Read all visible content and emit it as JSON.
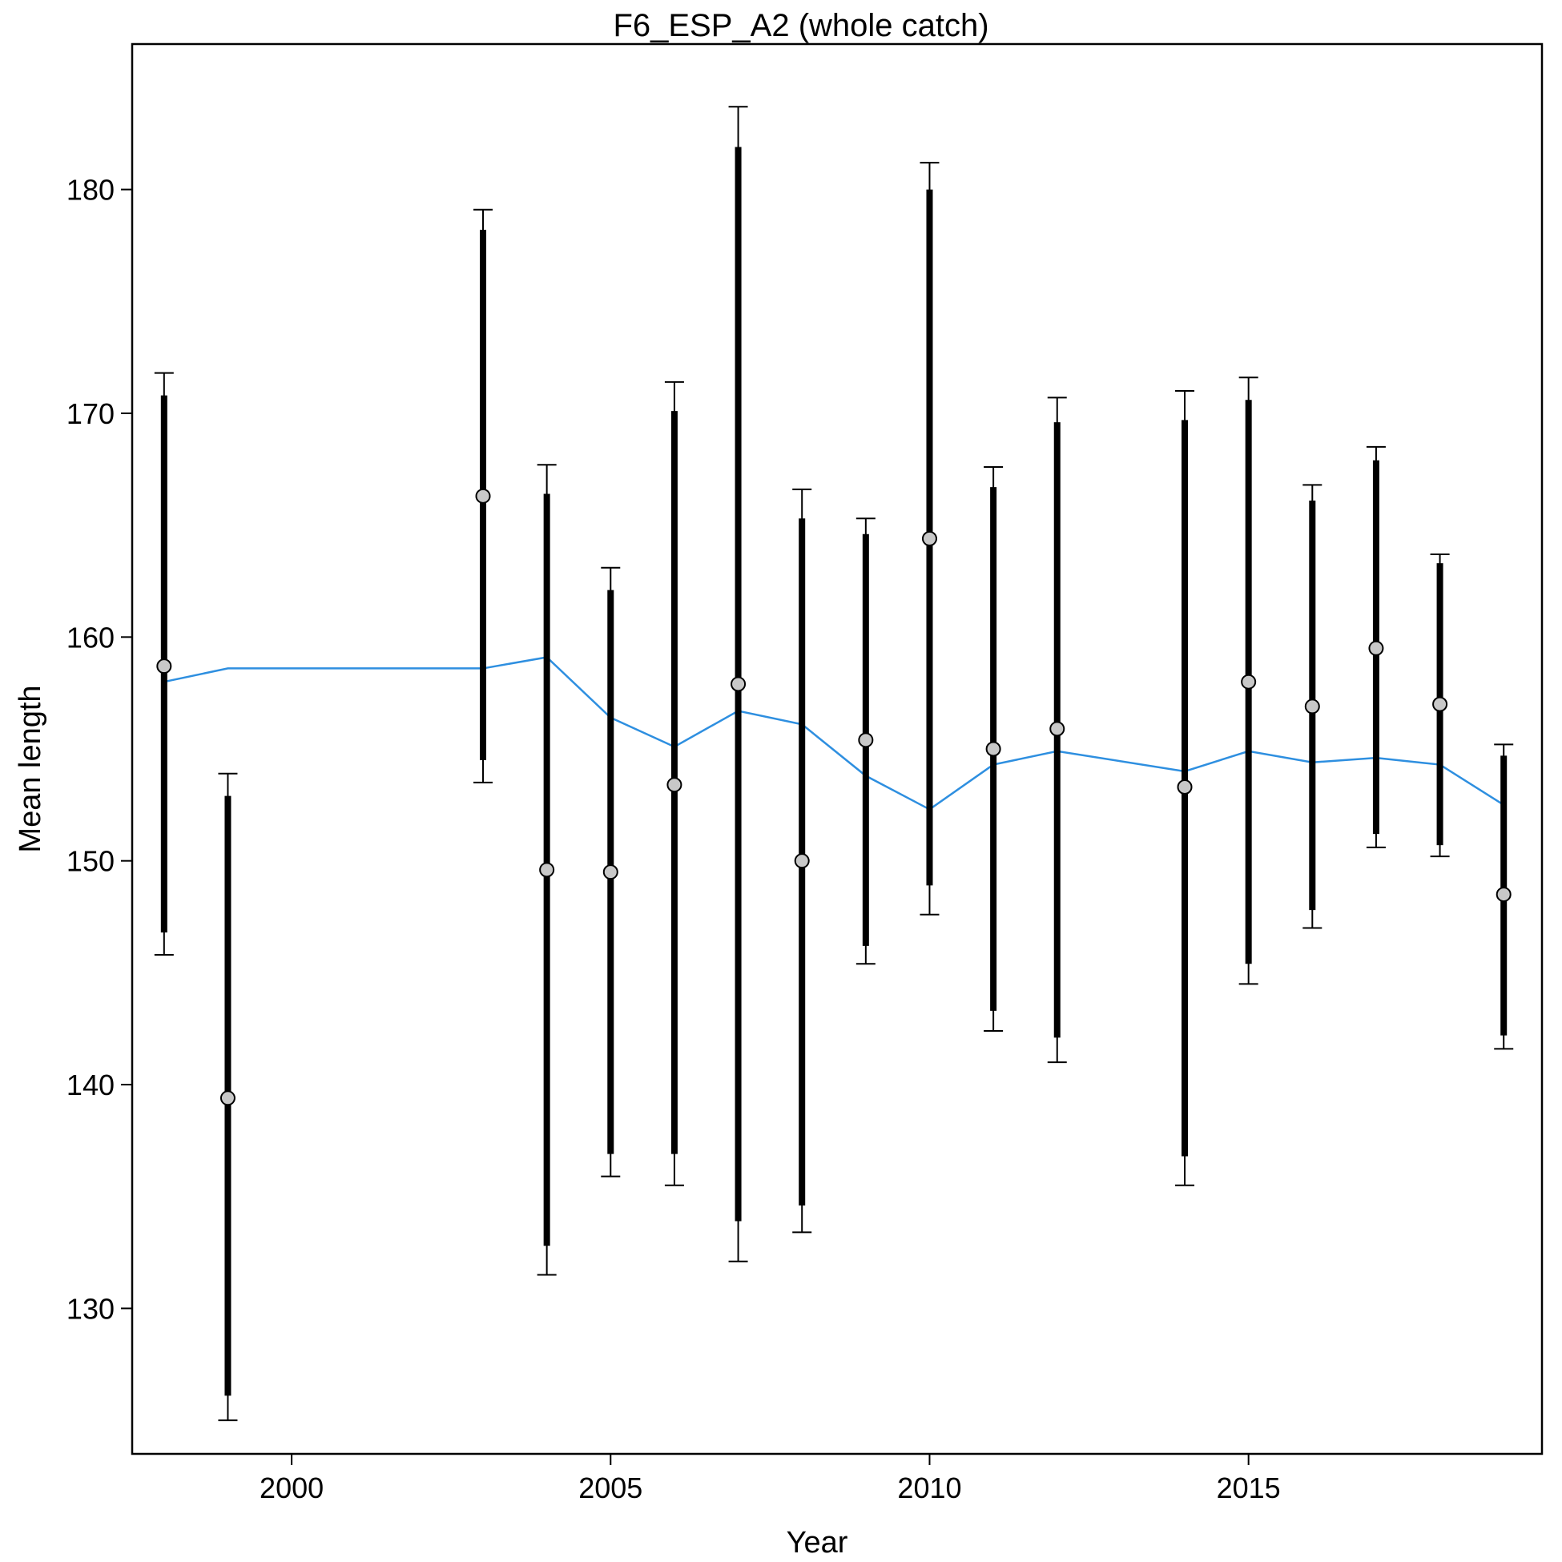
{
  "chart_data": {
    "type": "scatter",
    "title": "F6_ESP_A2 (whole catch)",
    "xlabel": "Year",
    "ylabel": "Mean length",
    "xlim": [
      1997.5,
      2019.6
    ],
    "ylim": [
      123.5,
      186.5
    ],
    "xticks": [
      2000,
      2005,
      2010,
      2015
    ],
    "yticks": [
      130,
      140,
      150,
      160,
      170,
      180
    ],
    "grid": false,
    "colors": {
      "observed_point_fill": "#c8c8c8",
      "error_bar": "#000000",
      "expected_line": "#2e8fe0"
    },
    "observed": [
      {
        "year": 1998,
        "mean": 158.7,
        "inner_lo": 146.8,
        "inner_hi": 170.8,
        "outer_lo": 145.8,
        "outer_hi": 171.8
      },
      {
        "year": 1999,
        "mean": 139.4,
        "inner_lo": 126.1,
        "inner_hi": 152.9,
        "outer_lo": 125.0,
        "outer_hi": 153.9
      },
      {
        "year": 2003,
        "mean": 166.3,
        "inner_lo": 154.5,
        "inner_hi": 178.2,
        "outer_lo": 153.5,
        "outer_hi": 179.1
      },
      {
        "year": 2004,
        "mean": 149.6,
        "inner_lo": 132.8,
        "inner_hi": 166.4,
        "outer_lo": 131.5,
        "outer_hi": 167.7
      },
      {
        "year": 2005,
        "mean": 149.5,
        "inner_lo": 136.9,
        "inner_hi": 162.1,
        "outer_lo": 135.9,
        "outer_hi": 163.1
      },
      {
        "year": 2006,
        "mean": 153.4,
        "inner_lo": 136.9,
        "inner_hi": 170.1,
        "outer_lo": 135.5,
        "outer_hi": 171.4
      },
      {
        "year": 2007,
        "mean": 157.9,
        "inner_lo": 133.9,
        "inner_hi": 181.9,
        "outer_lo": 132.1,
        "outer_hi": 183.7
      },
      {
        "year": 2008,
        "mean": 150.0,
        "inner_lo": 134.6,
        "inner_hi": 165.3,
        "outer_lo": 133.4,
        "outer_hi": 166.6
      },
      {
        "year": 2009,
        "mean": 155.4,
        "inner_lo": 146.2,
        "inner_hi": 164.6,
        "outer_lo": 145.4,
        "outer_hi": 165.3
      },
      {
        "year": 2010,
        "mean": 164.4,
        "inner_lo": 148.9,
        "inner_hi": 180.0,
        "outer_lo": 147.6,
        "outer_hi": 181.2
      },
      {
        "year": 2011,
        "mean": 155.0,
        "inner_lo": 143.3,
        "inner_hi": 166.7,
        "outer_lo": 142.4,
        "outer_hi": 167.6
      },
      {
        "year": 2012,
        "mean": 155.9,
        "inner_lo": 142.1,
        "inner_hi": 169.6,
        "outer_lo": 141.0,
        "outer_hi": 170.7
      },
      {
        "year": 2014,
        "mean": 153.3,
        "inner_lo": 136.8,
        "inner_hi": 169.7,
        "outer_lo": 135.5,
        "outer_hi": 171.0
      },
      {
        "year": 2015,
        "mean": 158.0,
        "inner_lo": 145.4,
        "inner_hi": 170.6,
        "outer_lo": 144.5,
        "outer_hi": 171.6
      },
      {
        "year": 2016,
        "mean": 156.9,
        "inner_lo": 147.8,
        "inner_hi": 166.1,
        "outer_lo": 147.0,
        "outer_hi": 166.8
      },
      {
        "year": 2017,
        "mean": 159.5,
        "inner_lo": 151.2,
        "inner_hi": 167.9,
        "outer_lo": 150.6,
        "outer_hi": 168.5
      },
      {
        "year": 2018,
        "mean": 157.0,
        "inner_lo": 150.7,
        "inner_hi": 163.3,
        "outer_lo": 150.2,
        "outer_hi": 163.7
      },
      {
        "year": 2019,
        "mean": 148.5,
        "inner_lo": 142.2,
        "inner_hi": 154.7,
        "outer_lo": 141.6,
        "outer_hi": 155.2
      }
    ],
    "expected": {
      "x": [
        1998,
        1999,
        2003,
        2004,
        2005,
        2006,
        2007,
        2008,
        2009,
        2010,
        2011,
        2012,
        2014,
        2015,
        2016,
        2017,
        2018,
        2019
      ],
      "y": [
        158.0,
        158.6,
        158.6,
        159.1,
        156.4,
        155.1,
        156.7,
        156.1,
        153.8,
        152.3,
        154.3,
        154.9,
        154.0,
        154.9,
        154.4,
        154.6,
        154.3,
        152.5
      ]
    }
  }
}
